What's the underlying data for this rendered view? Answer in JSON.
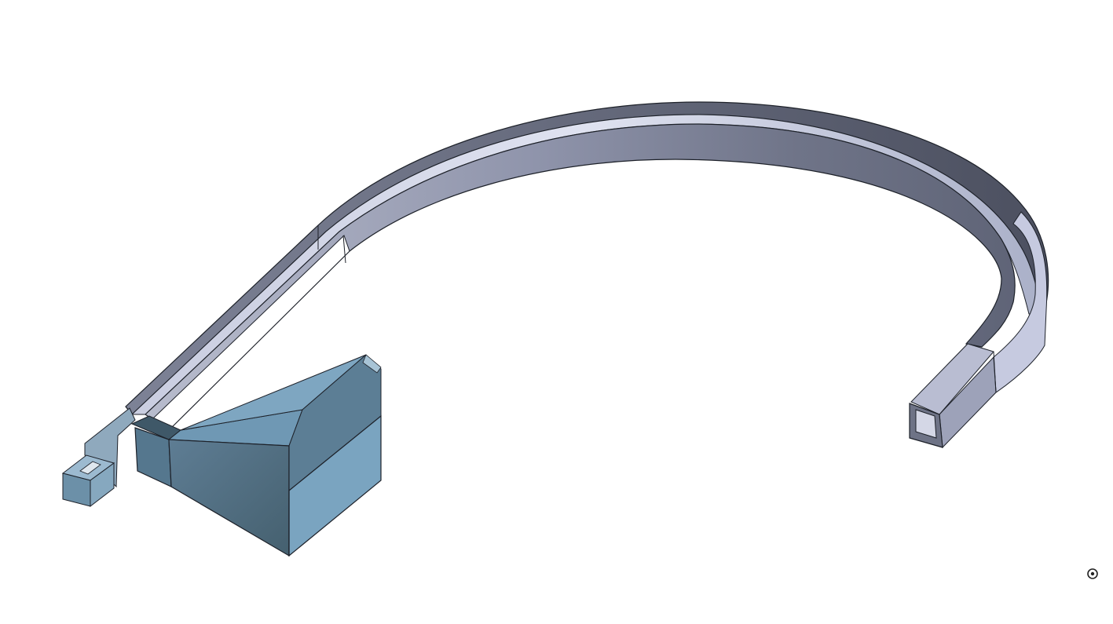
{
  "viewport": {
    "background": "#ffffff",
    "view_mode": "isometric-shaded",
    "selected_part": "none"
  },
  "model": {
    "parts": [
      {
        "name": "curved-chute",
        "color": "#8f95ac"
      },
      {
        "name": "horn-feed",
        "color": "#6f98b4"
      }
    ],
    "edge_color": "#1d2129"
  },
  "icons": {
    "pivot": "rotation-center-icon"
  }
}
